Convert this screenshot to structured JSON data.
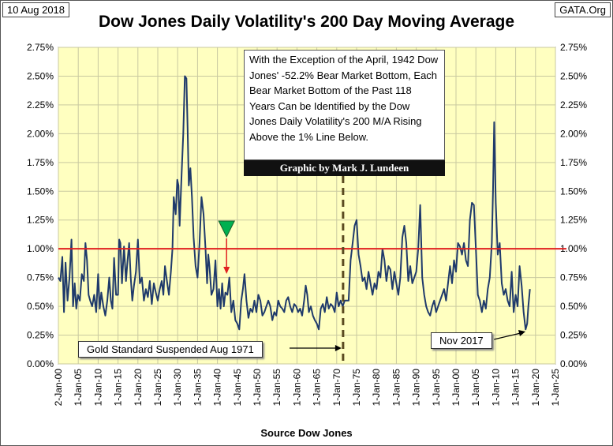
{
  "header": {
    "date": "10 Aug 2018",
    "source_site": "GATA.Org",
    "title": "Dow Jones Daily Volatility's 200 Day Moving Average"
  },
  "annotations": {
    "note": "With the Exception of the April, 1942 Dow Jones' -52.2% Bear Market Bottom, Each Bear Market Bottom of the Past 118 Years Can be Identified by the Dow Jones Daily Volatility's 200 M/A Rising Above the 1% Line Below.",
    "credit": "Graphic by Mark J. Lundeen",
    "gold_standard": "Gold Standard Suspended Aug 1971",
    "nov_2017": "Nov 2017"
  },
  "colors": {
    "plot_bg": "#FFFFC0",
    "series": "#1F3A6B",
    "reference_line": "#E02020",
    "marker": "#00B050",
    "arrow": "#E02020"
  },
  "chart_data": {
    "type": "line",
    "title": "Dow Jones Daily Volatility's 200 Day Moving Average",
    "xlabel": "Source Dow Jones",
    "ylabel": "",
    "xlim": [
      1900,
      2025
    ],
    "ylim": [
      0,
      2.75
    ],
    "grid": true,
    "y_ticks": [
      "0.00%",
      "0.25%",
      "0.50%",
      "0.75%",
      "1.00%",
      "1.25%",
      "1.50%",
      "1.75%",
      "2.00%",
      "2.25%",
      "2.50%",
      "2.75%"
    ],
    "x_ticks": [
      "2-Jan-00",
      "1-Jan-05",
      "1-Jan-10",
      "1-Jan-15",
      "1-Jan-20",
      "1-Jan-25",
      "1-Jan-30",
      "1-Jan-35",
      "1-Jan-40",
      "1-Jan-45",
      "1-Jan-50",
      "1-Jan-55",
      "1-Jan-60",
      "1-Jan-65",
      "1-Jan-70",
      "1-Jan-75",
      "1-Jan-80",
      "1-Jan-85",
      "1-Jan-90",
      "1-Jan-95",
      "1-Jan-00",
      "1-Jan-05",
      "1-Jan-10",
      "1-Jan-15",
      "1-Jan-20",
      "1-Jan-25"
    ],
    "reference_line": 1.0,
    "vertical_marker_year": 1971.6,
    "marker_year": 1942.3,
    "series": [
      {
        "x": [
          1900,
          1900.5,
          1901,
          1901.4,
          1901.8,
          1902.3,
          1902.8,
          1903.3,
          1903.7,
          1904.1,
          1904.5,
          1904.9,
          1905.4,
          1905.9,
          1906.4,
          1906.8,
          1907.2,
          1907.6,
          1908,
          1908.5,
          1909,
          1909.5,
          1910,
          1910.4,
          1910.8,
          1911.3,
          1911.8,
          1912.3,
          1912.8,
          1913.2,
          1913.6,
          1914,
          1914.5,
          1915,
          1915.3,
          1915.6,
          1916,
          1916.5,
          1917,
          1917.4,
          1917.8,
          1918.2,
          1918.6,
          1919,
          1919.5,
          1920,
          1920.5,
          1921,
          1921.5,
          1922,
          1922.5,
          1923,
          1923.5,
          1924,
          1924.5,
          1925,
          1925.5,
          1926,
          1926.4,
          1926.8,
          1927.3,
          1927.8,
          1928.3,
          1928.7,
          1929,
          1929.5,
          1929.9,
          1930.2,
          1930.5,
          1931,
          1931.4,
          1931.8,
          1932.2,
          1932.5,
          1932.8,
          1933.2,
          1933.6,
          1934,
          1934.5,
          1935,
          1935.5,
          1936,
          1936.5,
          1937,
          1937.4,
          1937.7,
          1938,
          1938.5,
          1939,
          1939.5,
          1940,
          1940.4,
          1940.8,
          1941.2,
          1941.6,
          1942,
          1942.5,
          1943,
          1943.5,
          1944,
          1944.5,
          1945,
          1945.5,
          1946,
          1946.4,
          1946.8,
          1947.3,
          1947.8,
          1948.3,
          1948.8,
          1949.3,
          1949.8,
          1950.3,
          1950.8,
          1951.3,
          1951.8,
          1952.3,
          1952.8,
          1953.3,
          1953.8,
          1954.3,
          1954.8,
          1955.3,
          1955.8,
          1956.3,
          1956.8,
          1957.3,
          1957.8,
          1958.3,
          1958.8,
          1959.3,
          1959.8,
          1960.3,
          1960.8,
          1961.3,
          1961.8,
          1962.2,
          1962.6,
          1963,
          1963.5,
          1964,
          1964.5,
          1965,
          1965.5,
          1966,
          1966.5,
          1967,
          1967.5,
          1968,
          1968.5,
          1969,
          1969.5,
          1970,
          1970.5,
          1971,
          1971.5,
          1972,
          1972.5,
          1973,
          1973.5,
          1974,
          1974.5,
          1975,
          1975.5,
          1976,
          1976.5,
          1977,
          1977.5,
          1978,
          1978.5,
          1979,
          1979.5,
          1980,
          1980.5,
          1981,
          1981.5,
          1982,
          1982.5,
          1983,
          1983.5,
          1984,
          1984.5,
          1985,
          1985.5,
          1986,
          1986.5,
          1987,
          1987.5,
          1988,
          1988.5,
          1989,
          1989.5,
          1990,
          1990.5,
          1991,
          1991.5,
          1992,
          1992.5,
          1993,
          1993.5,
          1994,
          1994.5,
          1995,
          1995.5,
          1996,
          1996.5,
          1997,
          1997.5,
          1998,
          1998.5,
          1999,
          1999.5,
          2000,
          2000.5,
          2001,
          2001.5,
          2002,
          2002.5,
          2003,
          2003.5,
          2004,
          2004.5,
          2005,
          2005.5,
          2006,
          2006.5,
          2007,
          2007.5,
          2008,
          2008.5,
          2009,
          2009.3,
          2009.6,
          2010,
          2010.5,
          2011,
          2011.5,
          2012,
          2012.5,
          2013,
          2013.5,
          2014,
          2014.5,
          2015,
          2015.5,
          2016,
          2016.5,
          2017,
          2017.5,
          2017.9,
          2018.2,
          2018.6
        ],
        "y": [
          0.75,
          0.72,
          0.93,
          0.45,
          0.88,
          0.55,
          0.75,
          1.08,
          0.5,
          0.7,
          0.48,
          0.6,
          0.55,
          0.78,
          0.72,
          1.05,
          0.9,
          0.6,
          0.55,
          0.5,
          0.6,
          0.45,
          0.78,
          0.48,
          0.62,
          0.5,
          0.42,
          0.55,
          0.75,
          0.55,
          0.48,
          0.92,
          0.6,
          0.6,
          1.08,
          1.05,
          0.7,
          1.02,
          0.72,
          0.9,
          1.05,
          0.75,
          0.55,
          0.68,
          0.8,
          1.08,
          0.7,
          0.75,
          0.55,
          0.65,
          0.58,
          0.72,
          0.52,
          0.7,
          0.62,
          0.55,
          0.65,
          0.72,
          0.6,
          0.85,
          0.72,
          0.6,
          0.8,
          1.0,
          1.45,
          1.3,
          1.6,
          1.55,
          1.2,
          1.65,
          2.0,
          2.5,
          2.48,
          2.05,
          1.55,
          1.7,
          1.45,
          1.1,
          0.85,
          0.75,
          1.05,
          1.45,
          1.3,
          1.0,
          0.7,
          0.95,
          0.85,
          0.6,
          0.65,
          0.9,
          0.5,
          0.65,
          0.48,
          0.7,
          0.5,
          0.62,
          0.6,
          0.75,
          0.45,
          0.55,
          0.38,
          0.35,
          0.3,
          0.55,
          0.65,
          0.78,
          0.55,
          0.4,
          0.48,
          0.45,
          0.55,
          0.45,
          0.6,
          0.55,
          0.42,
          0.45,
          0.5,
          0.55,
          0.5,
          0.38,
          0.45,
          0.42,
          0.55,
          0.5,
          0.48,
          0.45,
          0.55,
          0.58,
          0.5,
          0.45,
          0.52,
          0.5,
          0.45,
          0.48,
          0.42,
          0.55,
          0.68,
          0.6,
          0.45,
          0.5,
          0.42,
          0.38,
          0.35,
          0.3,
          0.48,
          0.52,
          0.45,
          0.58,
          0.48,
          0.52,
          0.5,
          0.45,
          0.62,
          0.5,
          0.55,
          0.5,
          0.55,
          0.55,
          0.55,
          0.9,
          1.05,
          1.2,
          1.25,
          0.95,
          0.85,
          0.72,
          0.75,
          0.65,
          0.8,
          0.7,
          0.6,
          0.7,
          0.65,
          0.8,
          0.75,
          1.0,
          0.9,
          0.72,
          0.85,
          0.82,
          0.65,
          0.8,
          0.7,
          0.6,
          0.75,
          1.1,
          1.2,
          1.05,
          0.72,
          0.85,
          0.7,
          0.75,
          0.8,
          1.0,
          1.38,
          0.75,
          0.6,
          0.5,
          0.45,
          0.42,
          0.5,
          0.55,
          0.45,
          0.5,
          0.55,
          0.6,
          0.65,
          0.55,
          0.7,
          0.85,
          0.7,
          0.9,
          0.8,
          1.05,
          1.02,
          0.95,
          1.05,
          0.9,
          0.85,
          1.25,
          1.4,
          1.38,
          1.0,
          0.6,
          0.55,
          0.45,
          0.55,
          0.48,
          0.65,
          0.75,
          1.05,
          1.5,
          2.1,
          1.4,
          0.95,
          1.05,
          0.7,
          0.6,
          0.65,
          0.55,
          0.5,
          0.8,
          0.45,
          0.6,
          0.5,
          0.85,
          0.68,
          0.45,
          0.3,
          0.35,
          0.5,
          0.65
        ]
      }
    ]
  }
}
